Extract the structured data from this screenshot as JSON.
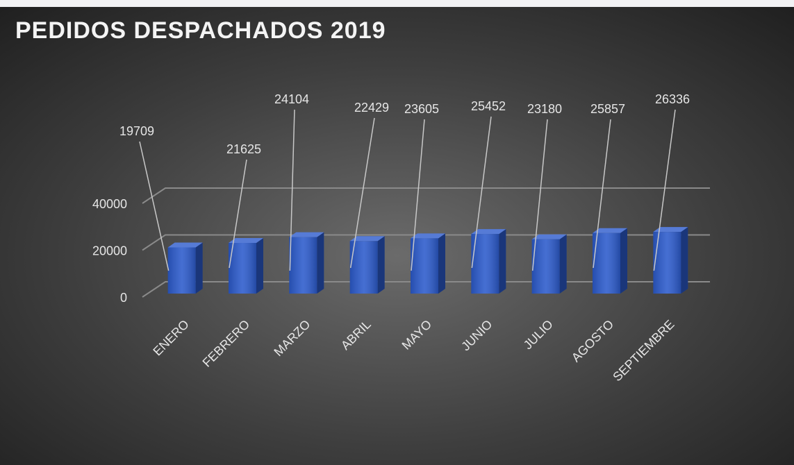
{
  "chart_data": {
    "type": "bar",
    "title": "PEDIDOS DESPACHADOS 2019",
    "categories": [
      "ENERO",
      "FEBRERO",
      "MARZO",
      "ABRIL",
      "MAYO",
      "JUNIO",
      "JULIO",
      "AGOSTO",
      "SEPTIEMBRE"
    ],
    "values": [
      19709,
      21625,
      24104,
      22429,
      23605,
      25452,
      23180,
      25857,
      26336
    ],
    "color": "#2c5bcc",
    "ylim": [
      0,
      40000
    ],
    "yticks": [
      0,
      20000,
      40000
    ],
    "grid": true
  }
}
